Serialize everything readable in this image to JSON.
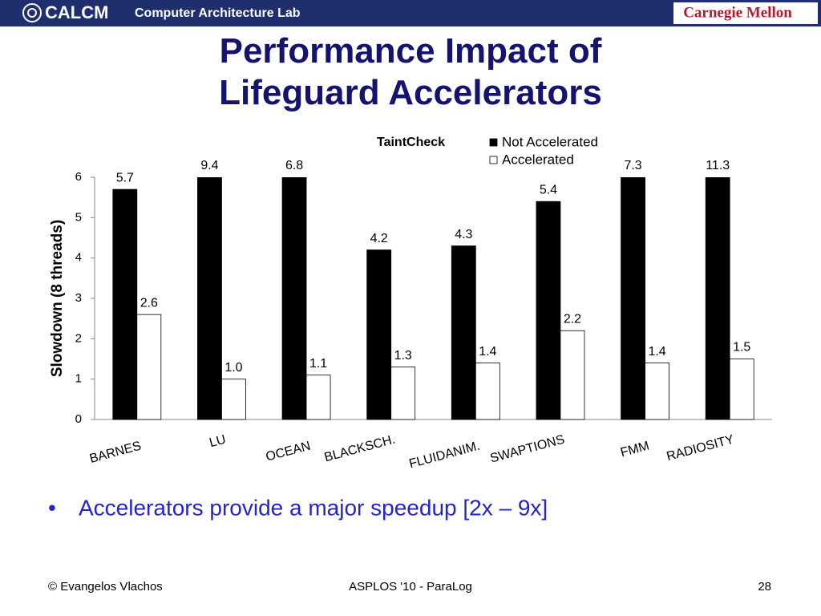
{
  "header": {
    "logo": "CALCM",
    "lab": "Computer Architecture Lab",
    "university": "Carnegie Mellon"
  },
  "title": "Performance Impact of Lifeguard Accelerators",
  "chart_data": {
    "type": "bar",
    "title": "TaintCheck",
    "ylabel": "Slowdown (8 threads)",
    "categories": [
      "BARNES",
      "LU",
      "OCEAN",
      "BLACKSCH.",
      "FLUIDANIM.",
      "SWAPTIONS",
      "FMM",
      "RADIOSITY"
    ],
    "series": [
      {
        "name": "Not Accelerated",
        "color": "#000000",
        "values": [
          5.7,
          9.4,
          6.8,
          4.2,
          4.3,
          5.4,
          7.3,
          11.3
        ],
        "value_labels": [
          "5.7",
          "9.4",
          "6.8",
          "4.2",
          "4.3",
          "5.4",
          "7.3",
          "11.3"
        ]
      },
      {
        "name": "Accelerated",
        "color": "#ffffff",
        "values": [
          2.6,
          1,
          1.1,
          1.3,
          1.4,
          2.2,
          1.4,
          1.5
        ],
        "value_labels": [
          "2.6",
          "1.0",
          "1.1",
          "1.3",
          "1.4",
          "2.2",
          "1.4",
          "1.5"
        ]
      }
    ],
    "ylim": [
      0,
      6
    ],
    "yticks": [
      0,
      1,
      2,
      3,
      4,
      5,
      6
    ],
    "grid": false,
    "legend": "upper right"
  },
  "bullet": "Accelerators provide a major speedup [2x – 9x]",
  "footer": {
    "left": "© Evangelos Vlachos",
    "center": "ASPLOS '10 - ParaLog",
    "right": "28"
  }
}
